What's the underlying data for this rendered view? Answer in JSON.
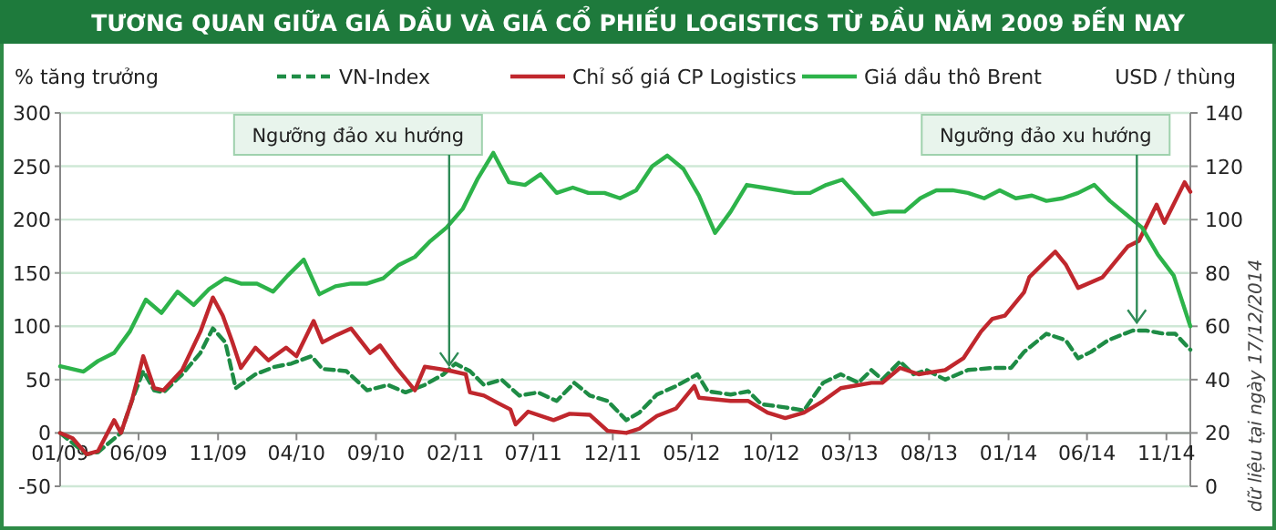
{
  "chart_data": {
    "type": "line",
    "title": "TƯƠNG QUAN GIỮA GIÁ DẦU VÀ GIÁ CỔ PHIẾU LOGISTICS TỪ ĐẦU NĂM 2009 ĐẾN NAY",
    "ylabel": "% tăng trưởng",
    "y2label": "USD / thùng",
    "xlim": [
      "2009-01-01",
      "2014-12-17"
    ],
    "xticks": [
      {
        "value": "2009-01-01",
        "label": "01/09"
      },
      {
        "value": "2009-06-01",
        "label": "06/09"
      },
      {
        "value": "2009-11-01",
        "label": "11/09"
      },
      {
        "value": "2010-04-01",
        "label": "04/10"
      },
      {
        "value": "2010-09-01",
        "label": "09/10"
      },
      {
        "value": "2011-02-01",
        "label": "02/11"
      },
      {
        "value": "2011-07-01",
        "label": "07/11"
      },
      {
        "value": "2011-12-01",
        "label": "12/11"
      },
      {
        "value": "2012-05-01",
        "label": "05/12"
      },
      {
        "value": "2012-10-01",
        "label": "10/12"
      },
      {
        "value": "2013-03-01",
        "label": "03/13"
      },
      {
        "value": "2013-08-01",
        "label": "08/13"
      },
      {
        "value": "2014-01-01",
        "label": "01/14"
      },
      {
        "value": "2014-06-01",
        "label": "06/14"
      },
      {
        "value": "2014-11-01",
        "label": "11/14"
      }
    ],
    "ylim": [
      -50,
      300
    ],
    "yticks": [
      -50,
      0,
      50,
      100,
      150,
      200,
      250,
      300
    ],
    "y2lim": [
      0,
      140
    ],
    "y2ticks": [
      0,
      20,
      40,
      60,
      80,
      100,
      120,
      140
    ],
    "grid": "y",
    "legend": "top",
    "marker": "none",
    "series": [
      {
        "name": "VN-Index",
        "color": "#1e8c45",
        "line_style": "dashed",
        "x": [
          "2009-01-01",
          "2009-02-21",
          "2009-03-15",
          "2009-04-28",
          "2009-05-19",
          "2009-06-10",
          "2009-07-01",
          "2009-07-19",
          "2009-08-24",
          "2009-09-28",
          "2009-10-22",
          "2009-11-15",
          "2009-12-05",
          "2010-01-12",
          "2010-02-18",
          "2010-03-22",
          "2010-04-30",
          "2010-05-21",
          "2010-07-06",
          "2010-08-15",
          "2010-09-24",
          "2010-10-28",
          "2010-12-04",
          "2011-01-09",
          "2011-02-01",
          "2011-03-01",
          "2011-03-28",
          "2011-05-01",
          "2011-06-04",
          "2011-07-10",
          "2011-08-15",
          "2011-09-18",
          "2011-10-18",
          "2011-11-21",
          "2011-12-27",
          "2012-01-21",
          "2012-02-24",
          "2012-04-01",
          "2012-05-12",
          "2012-06-01",
          "2012-07-15",
          "2012-08-18",
          "2012-09-12",
          "2012-10-28",
          "2012-12-03",
          "2013-01-09",
          "2013-02-12",
          "2013-03-18",
          "2013-04-12",
          "2013-05-03",
          "2013-06-06",
          "2013-07-02",
          "2013-07-27",
          "2013-09-01",
          "2013-10-15",
          "2013-12-01",
          "2014-01-06",
          "2014-01-31",
          "2014-03-15",
          "2014-04-21",
          "2014-05-15",
          "2014-06-09",
          "2014-07-12",
          "2014-08-28",
          "2014-09-23",
          "2014-10-28",
          "2014-11-18",
          "2014-12-17"
        ],
        "values": [
          0,
          -20,
          -18,
          0,
          30,
          58,
          40,
          38,
          55,
          75,
          98,
          85,
          42,
          55,
          62,
          65,
          72,
          60,
          58,
          40,
          45,
          38,
          45,
          55,
          65,
          58,
          45,
          50,
          35,
          38,
          30,
          47,
          35,
          30,
          12,
          19,
          36,
          44,
          55,
          39,
          36,
          39,
          27,
          24,
          21,
          47,
          55,
          47,
          59,
          50,
          67,
          55,
          59,
          50,
          59,
          61,
          61,
          76,
          93,
          87,
          70,
          76,
          87,
          96,
          96,
          93,
          93,
          78
        ]
      },
      {
        "name": "Chỉ số giá CP Logistics",
        "color": "#c0272d",
        "line_style": "solid",
        "x": [
          "2009-01-01",
          "2009-01-25",
          "2009-02-21",
          "2009-03-15",
          "2009-04-15",
          "2009-04-28",
          "2009-05-19",
          "2009-06-10",
          "2009-07-01",
          "2009-07-19",
          "2009-08-24",
          "2009-09-28",
          "2009-10-22",
          "2009-11-10",
          "2009-11-28",
          "2009-12-15",
          "2010-01-12",
          "2010-02-06",
          "2010-03-12",
          "2010-04-01",
          "2010-05-04",
          "2010-05-21",
          "2010-06-18",
          "2010-07-15",
          "2010-08-21",
          "2010-09-09",
          "2010-10-09",
          "2010-11-15",
          "2010-12-04",
          "2011-01-01",
          "2011-01-25",
          "2011-02-21",
          "2011-03-01",
          "2011-03-28",
          "2011-04-24",
          "2011-05-18",
          "2011-05-28",
          "2011-06-21",
          "2011-08-09",
          "2011-09-09",
          "2011-10-18",
          "2011-11-21",
          "2011-12-27",
          "2012-01-21",
          "2012-02-24",
          "2012-04-01",
          "2012-05-06",
          "2012-05-15",
          "2012-07-15",
          "2012-08-18",
          "2012-09-24",
          "2012-10-28",
          "2012-12-03",
          "2013-01-09",
          "2013-02-12",
          "2013-04-12",
          "2013-05-03",
          "2013-06-06",
          "2013-07-12",
          "2013-09-01",
          "2013-10-06",
          "2013-11-09",
          "2013-12-01",
          "2013-12-25",
          "2014-01-31",
          "2014-02-10",
          "2014-04-01",
          "2014-04-21",
          "2014-05-15",
          "2014-07-01",
          "2014-08-19",
          "2014-09-09",
          "2014-10-13",
          "2014-10-28",
          "2014-12-06",
          "2014-12-17"
        ],
        "values": [
          0,
          -5,
          -20,
          -17,
          12,
          0,
          30,
          72,
          42,
          40,
          59,
          95,
          127,
          110,
          86,
          61,
          80,
          68,
          80,
          72,
          105,
          85,
          92,
          98,
          75,
          82,
          62,
          40,
          62,
          60,
          58,
          55,
          38,
          35,
          28,
          22,
          8,
          20,
          12,
          18,
          17,
          2,
          0,
          4,
          16,
          23,
          44,
          33,
          30,
          30,
          19,
          14,
          19,
          30,
          42,
          47,
          47,
          61,
          55,
          59,
          70,
          95,
          107,
          110,
          132,
          146,
          170,
          158,
          136,
          146,
          175,
          180,
          214,
          197,
          235,
          226
        ]
      },
      {
        "name": "Giá dầu thô Brent",
        "color": "#2db34a",
        "line_style": "solid",
        "axis": "y2",
        "x": [
          "2009-01-01",
          "2009-02-15",
          "2009-03-15",
          "2009-04-15",
          "2009-05-15",
          "2009-06-15",
          "2009-07-15",
          "2009-08-15",
          "2009-09-15",
          "2009-10-15",
          "2009-11-15",
          "2009-12-15",
          "2010-01-15",
          "2010-02-15",
          "2010-03-15",
          "2010-04-15",
          "2010-05-15",
          "2010-06-15",
          "2010-07-15",
          "2010-08-15",
          "2010-09-15",
          "2010-10-15",
          "2010-11-15",
          "2010-12-15",
          "2011-01-15",
          "2011-02-15",
          "2011-03-15",
          "2011-04-15",
          "2011-05-15",
          "2011-06-15",
          "2011-07-15",
          "2011-08-15",
          "2011-09-15",
          "2011-10-15",
          "2011-11-15",
          "2011-12-15",
          "2012-01-15",
          "2012-02-15",
          "2012-03-15",
          "2012-04-15",
          "2012-05-15",
          "2012-06-15",
          "2012-07-15",
          "2012-08-15",
          "2012-09-15",
          "2012-10-15",
          "2012-11-15",
          "2012-12-15",
          "2013-01-15",
          "2013-02-15",
          "2013-03-15",
          "2013-04-15",
          "2013-05-15",
          "2013-06-15",
          "2013-07-15",
          "2013-08-15",
          "2013-09-15",
          "2013-10-15",
          "2013-11-15",
          "2013-12-15",
          "2014-01-15",
          "2014-02-15",
          "2014-03-15",
          "2014-04-15",
          "2014-05-15",
          "2014-06-15",
          "2014-07-15",
          "2014-08-15",
          "2014-09-15",
          "2014-10-15",
          "2014-11-15",
          "2014-12-17"
        ],
        "values": [
          45,
          43,
          47,
          50,
          58,
          70,
          65,
          73,
          68,
          74,
          78,
          76,
          76,
          73,
          79,
          85,
          72,
          75,
          76,
          76,
          78,
          83,
          86,
          92,
          97,
          104,
          115,
          125,
          114,
          113,
          117,
          110,
          112,
          110,
          110,
          108,
          111,
          120,
          124,
          119,
          109,
          95,
          103,
          113,
          112,
          111,
          110,
          110,
          113,
          115,
          109,
          102,
          103,
          103,
          108,
          111,
          111,
          110,
          108,
          111,
          108,
          109,
          107,
          108,
          110,
          113,
          107,
          102,
          97,
          87,
          79,
          60
        ]
      }
    ],
    "annotations": [
      {
        "text": "Ngưỡng đảo xu hướng",
        "x": "2011-01-20",
        "y": 60
      },
      {
        "text": "Ngưỡng đảo xu hướng",
        "x": "2014-09-05",
        "y": 100
      },
      "dữ liệu tại ngày 17/12/2014"
    ]
  }
}
